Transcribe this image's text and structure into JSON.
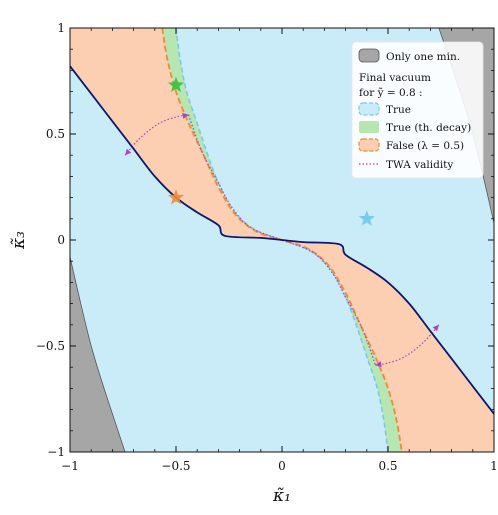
{
  "chart_data": {
    "type": "area",
    "xlabel": "κ̃₁",
    "ylabel": "κ̃₃",
    "xlim": [
      -1,
      1
    ],
    "ylim": [
      -1,
      1
    ],
    "xticks": [
      -1,
      -0.5,
      0,
      0.5,
      1
    ],
    "yticks": [
      -1,
      -0.5,
      0,
      0.5,
      1
    ],
    "xtick_labels": [
      "−1",
      "−0.5",
      "0",
      "0.5",
      "1"
    ],
    "ytick_labels": [
      "−1",
      "−0.5",
      "0",
      "0.5",
      "1"
    ],
    "legend": {
      "placement": "top-right",
      "only_one_min": "Only one min.",
      "heading_line1": "Final vacuum",
      "heading_line2": "for ỹ = 0.8 :",
      "entries": [
        "True",
        "True (th. decay)",
        "False (λ = 0.5)",
        "TWA validity"
      ]
    },
    "colors": {
      "only_one_min": "#a6a6a6",
      "true": "#c9ecf8",
      "true_edge": "#7dc8e8",
      "true_th_decay": "#b6e6b2",
      "true_th_decay_edge": "#79c979",
      "false": "#fccfb2",
      "false_edge": "#f28a35",
      "boundary": "#0d1670",
      "twa": "#a744c4",
      "star_green": "#3bbf3b",
      "star_orange": "#f28a35",
      "star_blue": "#6cc8ee"
    },
    "regions": {
      "only_one_min_left": [
        [
          -1,
          -0.08
        ],
        [
          -0.9,
          -0.5
        ],
        [
          -0.8,
          -0.82
        ],
        [
          -0.74,
          -1
        ],
        [
          -1,
          -1
        ]
      ],
      "only_one_min_right": [
        [
          1,
          0.08
        ],
        [
          0.9,
          0.5
        ],
        [
          0.8,
          0.82
        ],
        [
          0.74,
          1
        ],
        [
          1,
          1
        ]
      ],
      "boundary_curve": [
        [
          -1,
          0.82
        ],
        [
          -0.9,
          0.69
        ],
        [
          -0.8,
          0.56
        ],
        [
          -0.7,
          0.43
        ],
        [
          -0.6,
          0.3
        ],
        [
          -0.5,
          0.2
        ],
        [
          -0.4,
          0.13
        ],
        [
          -0.3,
          0.07
        ],
        [
          -0.27,
          0.02
        ],
        [
          -0.1,
          0.01
        ],
        [
          0,
          0.0
        ],
        [
          0.1,
          -0.01
        ],
        [
          0.27,
          -0.02
        ],
        [
          0.3,
          -0.07
        ],
        [
          0.4,
          -0.13
        ],
        [
          0.5,
          -0.2
        ],
        [
          0.6,
          -0.3
        ],
        [
          0.7,
          -0.43
        ],
        [
          0.8,
          -0.56
        ],
        [
          0.9,
          -0.69
        ],
        [
          1,
          -0.82
        ]
      ],
      "false_edge_curve": [
        [
          -0.565,
          1
        ],
        [
          -0.54,
          0.85
        ],
        [
          -0.5,
          0.7
        ],
        [
          -0.44,
          0.55
        ],
        [
          -0.37,
          0.4
        ],
        [
          -0.3,
          0.25
        ],
        [
          -0.22,
          0.12
        ],
        [
          -0.12,
          0.04
        ],
        [
          0,
          0
        ],
        [
          0.12,
          -0.04
        ],
        [
          0.22,
          -0.12
        ],
        [
          0.3,
          -0.25
        ],
        [
          0.37,
          -0.4
        ],
        [
          0.44,
          -0.55
        ],
        [
          0.5,
          -0.7
        ],
        [
          0.54,
          -0.85
        ],
        [
          0.565,
          -1
        ]
      ],
      "true_edge_curve": [
        [
          -0.5,
          1
        ],
        [
          -0.48,
          0.85
        ],
        [
          -0.45,
          0.7
        ],
        [
          -0.4,
          0.55
        ],
        [
          -0.35,
          0.4
        ],
        [
          -0.3,
          0.27
        ],
        [
          -0.23,
          0.14
        ],
        [
          -0.13,
          0.05
        ],
        [
          0,
          0
        ],
        [
          0.13,
          -0.05
        ],
        [
          0.23,
          -0.14
        ],
        [
          0.3,
          -0.27
        ],
        [
          0.35,
          -0.4
        ],
        [
          0.4,
          -0.55
        ],
        [
          0.45,
          -0.7
        ],
        [
          0.48,
          -0.85
        ],
        [
          0.5,
          -1
        ]
      ],
      "twa_curve": [
        [
          -0.44,
          0.59
        ],
        [
          -0.41,
          0.5
        ],
        [
          -0.37,
          0.4
        ],
        [
          -0.3,
          0.27
        ],
        [
          -0.24,
          0.16
        ],
        [
          -0.15,
          0.06
        ],
        [
          0,
          0
        ],
        [
          0.15,
          -0.06
        ],
        [
          0.24,
          -0.16
        ],
        [
          0.3,
          -0.27
        ],
        [
          0.37,
          -0.4
        ],
        [
          0.41,
          -0.5
        ],
        [
          0.44,
          -0.59
        ]
      ],
      "twa_arc_upper": [
        [
          -0.74,
          0.4
        ],
        [
          -0.67,
          0.48
        ],
        [
          -0.58,
          0.55
        ],
        [
          -0.5,
          0.58
        ],
        [
          -0.44,
          0.59
        ]
      ],
      "twa_arc_lower": [
        [
          0.44,
          -0.59
        ],
        [
          0.5,
          -0.58
        ],
        [
          0.58,
          -0.55
        ],
        [
          0.67,
          -0.48
        ],
        [
          0.74,
          -0.4
        ]
      ]
    },
    "markers": [
      {
        "x": -0.5,
        "y": 0.73,
        "color_key": "star_green"
      },
      {
        "x": -0.5,
        "y": 0.2,
        "color_key": "star_orange"
      },
      {
        "x": 0.4,
        "y": 0.1,
        "color_key": "star_blue"
      }
    ]
  }
}
